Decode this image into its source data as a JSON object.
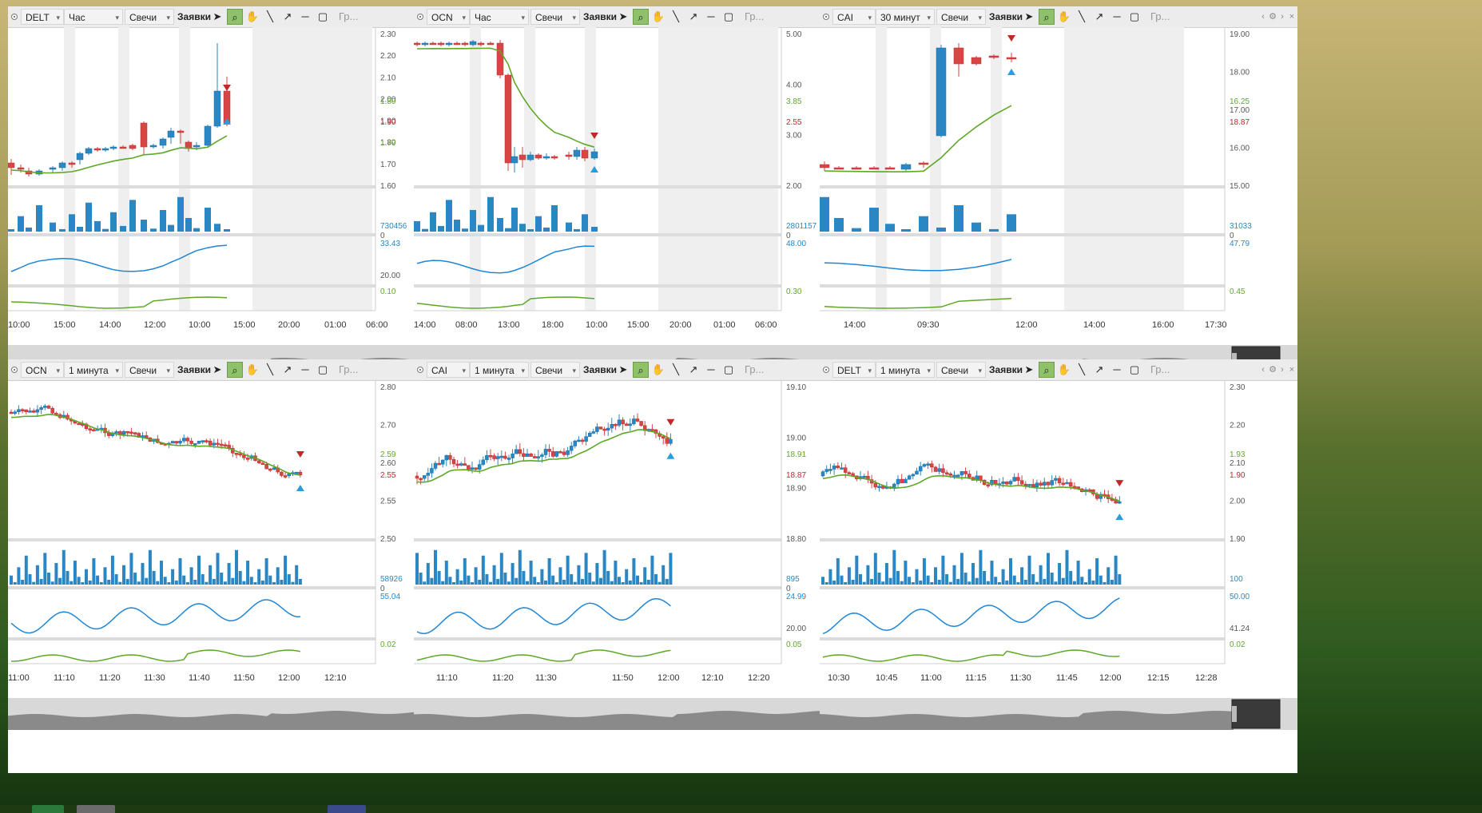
{
  "colors": {
    "up": "#2a87c4",
    "down": "#d94545",
    "ma": "#5ea826",
    "rsi": "#1f86d6",
    "signal_down": "#c0282a",
    "signal_up": "#2a9de0",
    "grid_shade": "#efefef"
  },
  "toolbar": {
    "orders_label": "Заявки",
    "group_label": "Гр..."
  },
  "panels": [
    {
      "instrument": "DELT",
      "interval": "Час",
      "chart_type": "Свечи",
      "price": {
        "ticks": [
          "2.30",
          "2.20",
          "2.10",
          "2.00",
          "1.90",
          "1.80",
          "1.70",
          "1.60"
        ],
        "last_label": "1.90",
        "ma_label": "1.80",
        "ma_label2": "1.79"
      },
      "volume": {
        "max_label": "730456",
        "zero_label": "0"
      },
      "rsi": {
        "top_label": "33.43",
        "mid_label": "20.00"
      },
      "osc": {
        "label": "0.10"
      },
      "time_labels": [
        "10:00",
        "15:00",
        "14:00",
        "12:00",
        "10:00",
        "15:00",
        "20:00",
        "01:00",
        "06:00"
      ]
    },
    {
      "instrument": "OCN",
      "interval": "Час",
      "chart_type": "Свечи",
      "price": {
        "ticks": [
          "5.00",
          "4.00",
          "3.00",
          "2.00"
        ],
        "last_label": "2.55",
        "ma_label": "3.85",
        "ma_label2": ""
      },
      "volume": {
        "max_label": "2801157",
        "zero_label": "0"
      },
      "rsi": {
        "top_label": "48.00",
        "mid_label": ""
      },
      "osc": {
        "label": "0.30"
      },
      "time_labels": [
        "14:00",
        "08:00",
        "13:00",
        "18:00",
        "10:00",
        "15:00",
        "20:00",
        "01:00",
        "06:00"
      ]
    },
    {
      "instrument": "CAI",
      "interval": "30 минут",
      "chart_type": "Свечи",
      "price": {
        "ticks": [
          "19.00",
          "18.00",
          "17.00",
          "16.00",
          "15.00"
        ],
        "last_label": "18.87",
        "ma_label": "16.25",
        "ma_label2": ""
      },
      "volume": {
        "max_label": "31033",
        "zero_label": "0"
      },
      "rsi": {
        "top_label": "47.79",
        "mid_label": ""
      },
      "osc": {
        "label": "0.45"
      },
      "time_labels": [
        "14:00",
        "09:30",
        "12:00",
        "14:00",
        "16:00",
        "17:30"
      ]
    },
    {
      "instrument": "OCN",
      "interval": "1 минута",
      "chart_type": "Свечи",
      "price": {
        "ticks": [
          "2.80",
          "2.70",
          "2.60",
          "2.55",
          "2.50"
        ],
        "last_label": "2.55",
        "ma_label": "2.59",
        "ma_label2": ""
      },
      "volume": {
        "max_label": "58926",
        "zero_label": "0"
      },
      "rsi": {
        "top_label": "55.04",
        "mid_label": ""
      },
      "osc": {
        "label": "0.02"
      },
      "time_labels": [
        "11:00",
        "11:10",
        "11:20",
        "11:30",
        "11:40",
        "11:50",
        "12:00",
        "12:10"
      ]
    },
    {
      "instrument": "CAI",
      "interval": "1 минута",
      "chart_type": "Свечи",
      "price": {
        "ticks": [
          "19.10",
          "19.00",
          "18.90",
          "18.80"
        ],
        "last_label": "18.87",
        "ma_label": "18.91",
        "ma_label2": ""
      },
      "volume": {
        "max_label": "895",
        "zero_label": "0"
      },
      "rsi": {
        "top_label": "24.99",
        "mid_label": "20.00"
      },
      "osc": {
        "label": "0.05"
      },
      "time_labels": [
        "11:10",
        "11:20",
        "11:30",
        "11:50",
        "12:00",
        "12:10",
        "12:20"
      ]
    },
    {
      "instrument": "DELT",
      "interval": "1 минута",
      "chart_type": "Свечи",
      "price": {
        "ticks": [
          "2.30",
          "2.20",
          "2.10",
          "2.00",
          "1.90"
        ],
        "last_label": "1.90",
        "ma_label": "1.93",
        "ma_label2": ""
      },
      "volume": {
        "max_label": "100",
        "zero_label": ""
      },
      "rsi": {
        "top_label": "50.00",
        "mid_label": "41.24"
      },
      "osc": {
        "label": "0.02"
      },
      "time_labels": [
        "10:30",
        "10:45",
        "11:00",
        "11:15",
        "11:30",
        "11:45",
        "12:00",
        "12:15",
        "12:28"
      ]
    }
  ]
}
